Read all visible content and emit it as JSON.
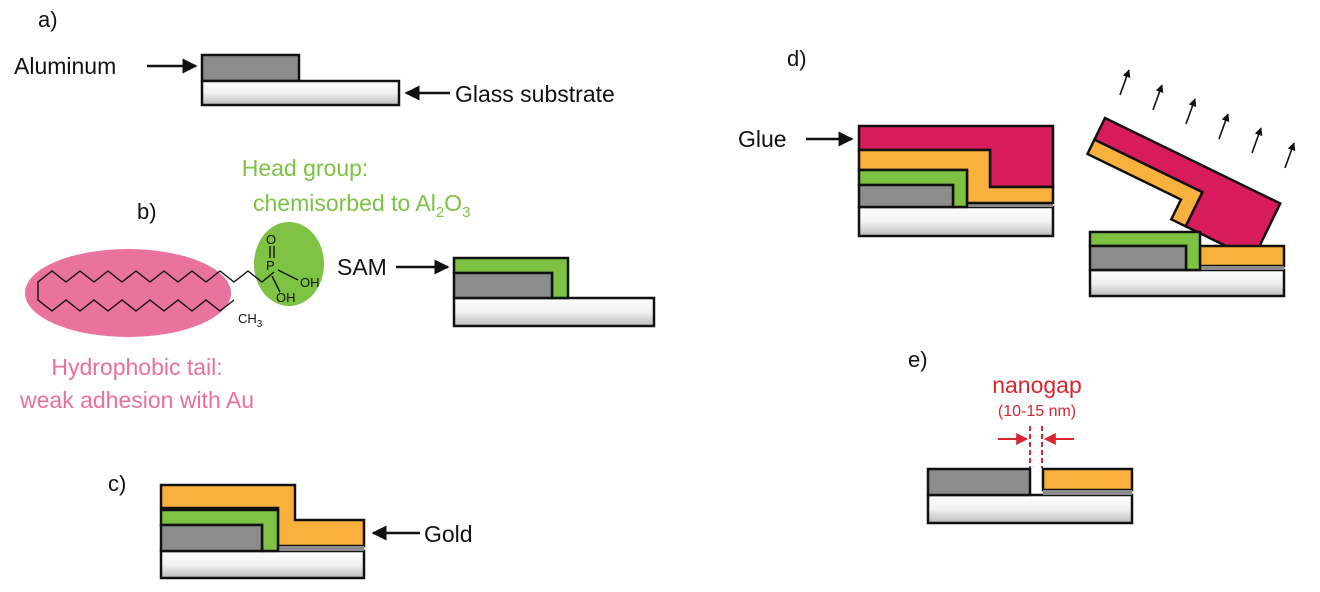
{
  "panels": {
    "a": "a)",
    "b": "b)",
    "c": "c)",
    "d": "d)",
    "e": "e)"
  },
  "labels": {
    "aluminum": "Aluminum",
    "glass_substrate": "Glass substrate",
    "head_group_line1": "Head group:",
    "head_group_line2": "chemisorbed to Al",
    "head_sub1": "2",
    "head_o": "O",
    "head_sub2": "3",
    "sam": "SAM",
    "tail_line1": "Hydrophobic tail:",
    "tail_line2": "weak adhesion with Au",
    "gold": "Gold",
    "glue": "Glue",
    "nanogap": "nanogap",
    "nanogap_size": "(10-15 nm)"
  },
  "molecule": {
    "o": "O",
    "p": "P",
    "oh1": "OH",
    "oh2": "OH",
    "ch": "CH",
    "ch_sub": "3"
  },
  "colors": {
    "aluminum": "#8c8c8c",
    "sam": "#7dc242",
    "gold": "#f9b03d",
    "glue": "#d81b5a",
    "tail_ellipse": "#e9729f",
    "head_ellipse": "#7dc242",
    "head_text": "#7dc242",
    "tail_text": "#ea6f9c",
    "nanogap": "#d7262f"
  }
}
